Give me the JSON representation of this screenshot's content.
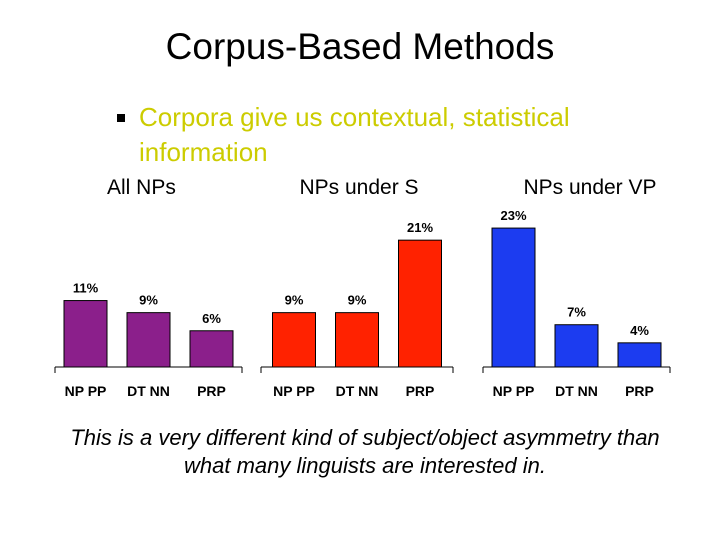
{
  "slide": {
    "title": "Corpus-Based Methods",
    "bullet": "Corpora give us contextual, statistical information",
    "footer": "This is a very different kind of subject/object asymmetry than what many linguists are interested in."
  },
  "colors": {
    "bullet_text": "#cccc00",
    "all_nps": "#8b1f8b",
    "nps_under_s": "#ff2200",
    "nps_under_vp": "#1c3cf0"
  },
  "chart_data": [
    {
      "type": "bar",
      "title": "All NPs",
      "categories": [
        "NP PP",
        "DT NN",
        "PRP"
      ],
      "values": [
        11,
        9,
        6
      ],
      "data_labels": [
        "11%",
        "9%",
        "6%"
      ],
      "ylim": [
        0,
        25
      ],
      "color": "#8b1f8b"
    },
    {
      "type": "bar",
      "title": "NPs under S",
      "categories": [
        "NP PP",
        "DT NN",
        "PRP"
      ],
      "values": [
        9,
        9,
        21
      ],
      "data_labels": [
        "9%",
        "9%",
        "21%"
      ],
      "ylim": [
        0,
        25
      ],
      "color": "#ff2200"
    },
    {
      "type": "bar",
      "title": "NPs under VP",
      "categories": [
        "NP PP",
        "DT NN",
        "PRP"
      ],
      "values": [
        23,
        7,
        4
      ],
      "data_labels": [
        "23%",
        "7%",
        "4%"
      ],
      "ylim": [
        0,
        25
      ],
      "color": "#1c3cf0"
    }
  ]
}
